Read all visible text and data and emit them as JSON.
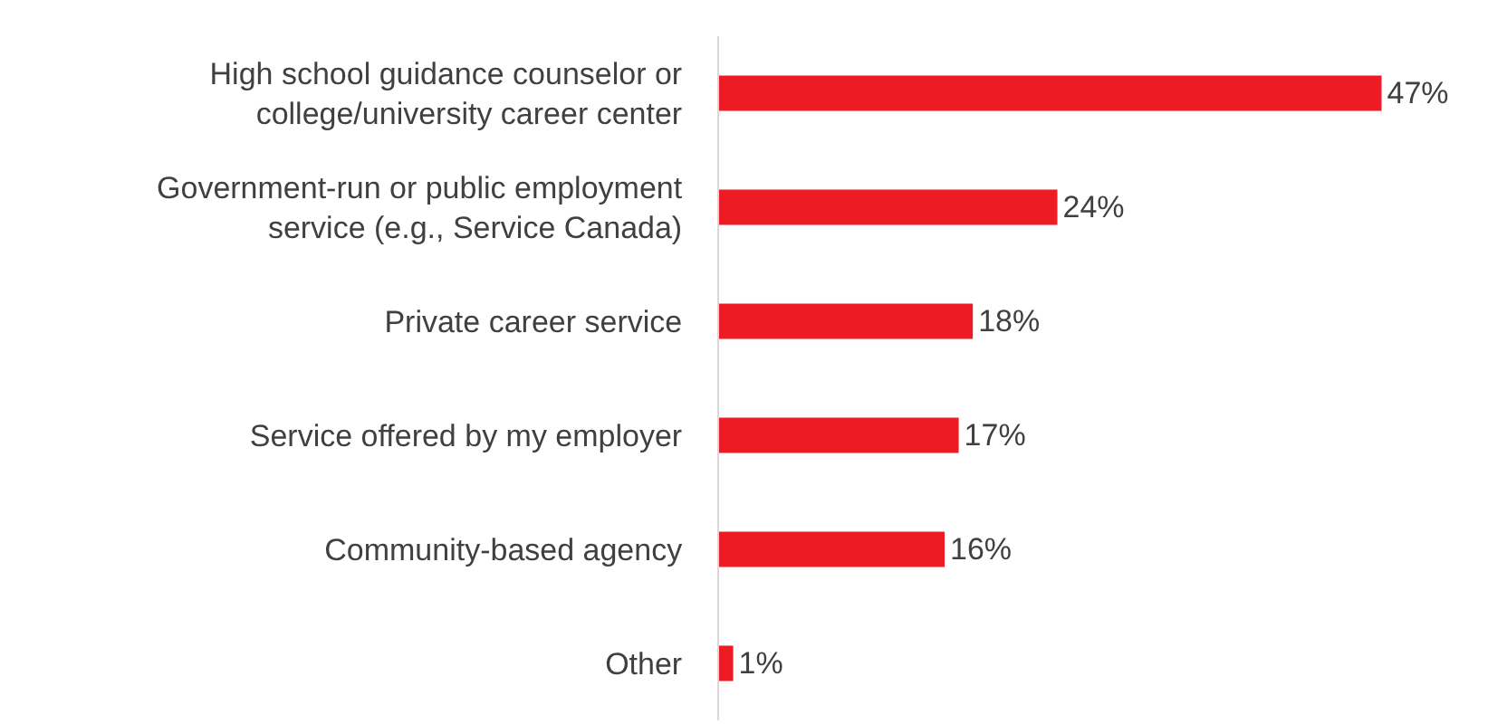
{
  "chart_data": {
    "type": "bar",
    "orientation": "horizontal",
    "categories": [
      "High school guidance counselor or college/university career center",
      "Government-run or public employment service (e.g., Service Canada)",
      "Private career service",
      "Service offered by my employer",
      "Community-based agency",
      "Other"
    ],
    "values": [
      47,
      24,
      18,
      17,
      16,
      1
    ],
    "value_labels": [
      "47%",
      "24%",
      "18%",
      "17%",
      "16%",
      "1%"
    ],
    "color": "#ed1c24",
    "legend": false
  }
}
